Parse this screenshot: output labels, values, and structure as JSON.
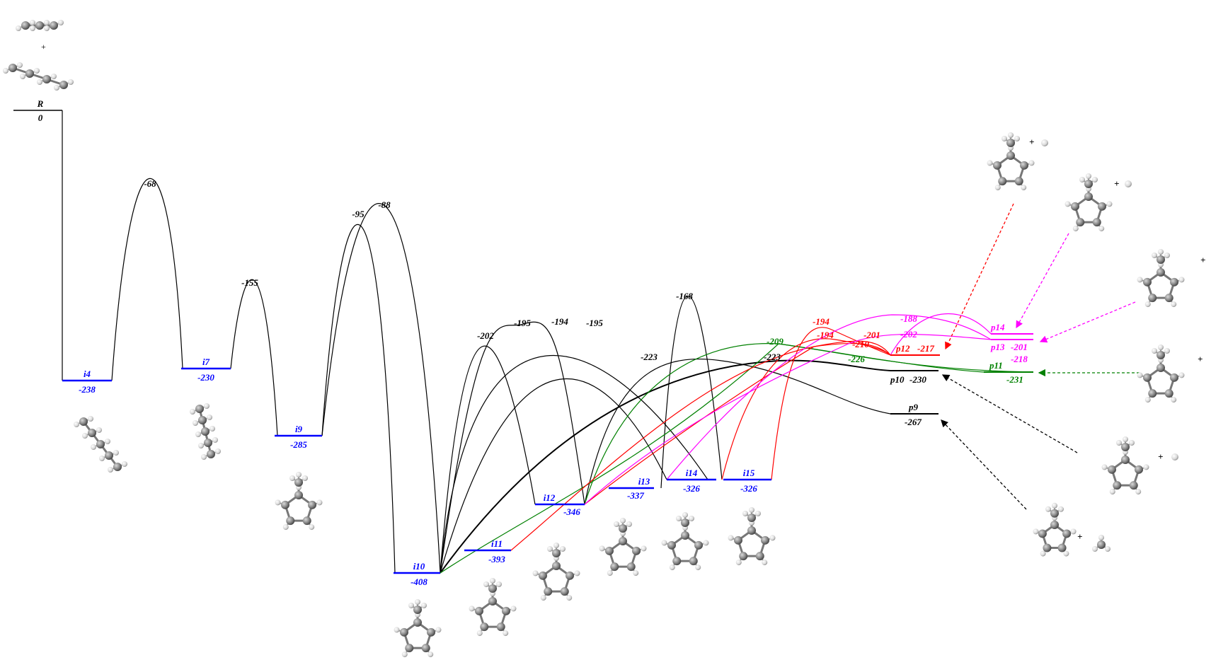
{
  "colors": {
    "black": "#000000",
    "blue": "#0000ff",
    "green": "#008000",
    "red": "#ff0000",
    "magenta": "#ff00ff"
  },
  "reactant": {
    "name": "R",
    "energy": "0",
    "plus": "+"
  },
  "levels": [
    {
      "id": "i4",
      "name": "i4",
      "energy": "-238",
      "color": "blue"
    },
    {
      "id": "i7",
      "name": "i7",
      "energy": "-230",
      "color": "blue"
    },
    {
      "id": "i9",
      "name": "i9",
      "energy": "-285",
      "color": "blue"
    },
    {
      "id": "i10",
      "name": "i10",
      "energy": "-408",
      "color": "blue"
    },
    {
      "id": "i11",
      "name": "i11",
      "energy": "-393",
      "color": "blue"
    },
    {
      "id": "i12",
      "name": "i12",
      "energy": "-346",
      "color": "blue"
    },
    {
      "id": "i13",
      "name": "i13",
      "energy": "-337",
      "color": "blue"
    },
    {
      "id": "i14",
      "name": "i14",
      "energy": "-326",
      "color": "blue"
    },
    {
      "id": "i15",
      "name": "i15",
      "energy": "-326",
      "color": "blue"
    }
  ],
  "products": [
    {
      "id": "p9",
      "name": "p9",
      "energy": "-267",
      "color": "black"
    },
    {
      "id": "p10",
      "name": "p10",
      "energy": "-230",
      "color": "black"
    },
    {
      "id": "p11",
      "name": "p11",
      "energy": "-231",
      "color": "green"
    },
    {
      "id": "p12",
      "name": "p12",
      "energy": "-217",
      "color": "red"
    },
    {
      "id": "p13",
      "name": "p13",
      "energy": "-201",
      "color": "magenta"
    },
    {
      "id": "p14",
      "name": "p14",
      "energy": "",
      "color": "magenta"
    }
  ],
  "transition_states": [
    {
      "value": "-68",
      "color": "black"
    },
    {
      "value": "-155",
      "color": "black"
    },
    {
      "value": "-95",
      "color": "black"
    },
    {
      "value": "-88",
      "color": "black"
    },
    {
      "value": "-202",
      "color": "black"
    },
    {
      "value": "-195",
      "color": "black"
    },
    {
      "value": "-194",
      "color": "black"
    },
    {
      "value": "-195",
      "color": "black"
    },
    {
      "value": "-223",
      "color": "black"
    },
    {
      "value": "-168",
      "color": "black"
    },
    {
      "value": "-223",
      "color": "black"
    },
    {
      "value": "-209",
      "color": "green"
    },
    {
      "value": "-226",
      "color": "green"
    },
    {
      "value": "-194",
      "color": "red"
    },
    {
      "value": "-194",
      "color": "red"
    },
    {
      "value": "-201",
      "color": "red"
    },
    {
      "value": "-210",
      "color": "red"
    },
    {
      "value": "-188",
      "color": "magenta"
    },
    {
      "value": "-202",
      "color": "magenta"
    },
    {
      "value": "-218",
      "color": "magenta"
    }
  ],
  "product_plus_signs": [
    "+",
    "+",
    "+",
    "+",
    "+",
    "+"
  ]
}
